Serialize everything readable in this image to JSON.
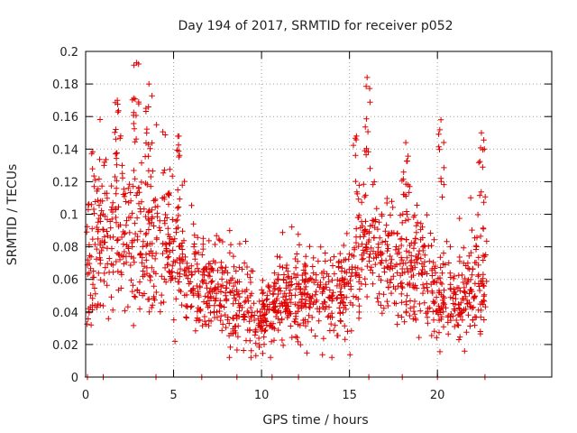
{
  "chart_data": {
    "type": "scatter",
    "title": "Day 194 of 2017, SRMTID for receiver p052",
    "xlabel": "GPS time / hours",
    "ylabel": "SRMTID / TECUs",
    "xlim": [
      0,
      26.5
    ],
    "ylim": [
      0,
      0.2
    ],
    "x_ticks": [
      0,
      5,
      10,
      15,
      20
    ],
    "x_tick_labels": [
      "0",
      "5",
      "10",
      "15",
      "20"
    ],
    "y_ticks": [
      0,
      0.02,
      0.04,
      0.06,
      0.08,
      0.1,
      0.12,
      0.14,
      0.16,
      0.18,
      0.2
    ],
    "y_tick_labels": [
      "0",
      "0.02",
      "0.04",
      "0.06",
      "0.08",
      "0.1",
      "0.12",
      "0.14",
      "0.16",
      "0.18",
      "0.2"
    ],
    "grid": true,
    "marker": "plus",
    "series_color": "#e00000",
    "trend_profile": {
      "x": [
        0,
        1,
        2,
        3,
        4,
        5,
        6,
        7,
        8,
        9,
        10,
        11,
        12,
        13,
        14,
        15,
        16,
        17,
        18,
        19,
        20,
        21,
        22,
        22.8
      ],
      "y": [
        0.075,
        0.09,
        0.095,
        0.09,
        0.085,
        0.075,
        0.065,
        0.055,
        0.05,
        0.045,
        0.035,
        0.045,
        0.05,
        0.05,
        0.05,
        0.06,
        0.08,
        0.075,
        0.07,
        0.065,
        0.05,
        0.045,
        0.055,
        0.06
      ]
    },
    "peaks": [
      {
        "x": 2.9,
        "y": 0.193
      },
      {
        "x": 3.6,
        "y": 0.18
      },
      {
        "x": 1.8,
        "y": 0.17
      },
      {
        "x": 16.0,
        "y": 0.184
      },
      {
        "x": 15.4,
        "y": 0.148
      },
      {
        "x": 20.2,
        "y": 0.158
      },
      {
        "x": 22.5,
        "y": 0.15
      },
      {
        "x": 5.3,
        "y": 0.148
      },
      {
        "x": 18.2,
        "y": 0.144
      }
    ],
    "baseline_markers_x": [
      0.1,
      1.0,
      4.0,
      6.6,
      8.6,
      10.6,
      12.1,
      16.1,
      18.0,
      20.0,
      22.7
    ]
  }
}
